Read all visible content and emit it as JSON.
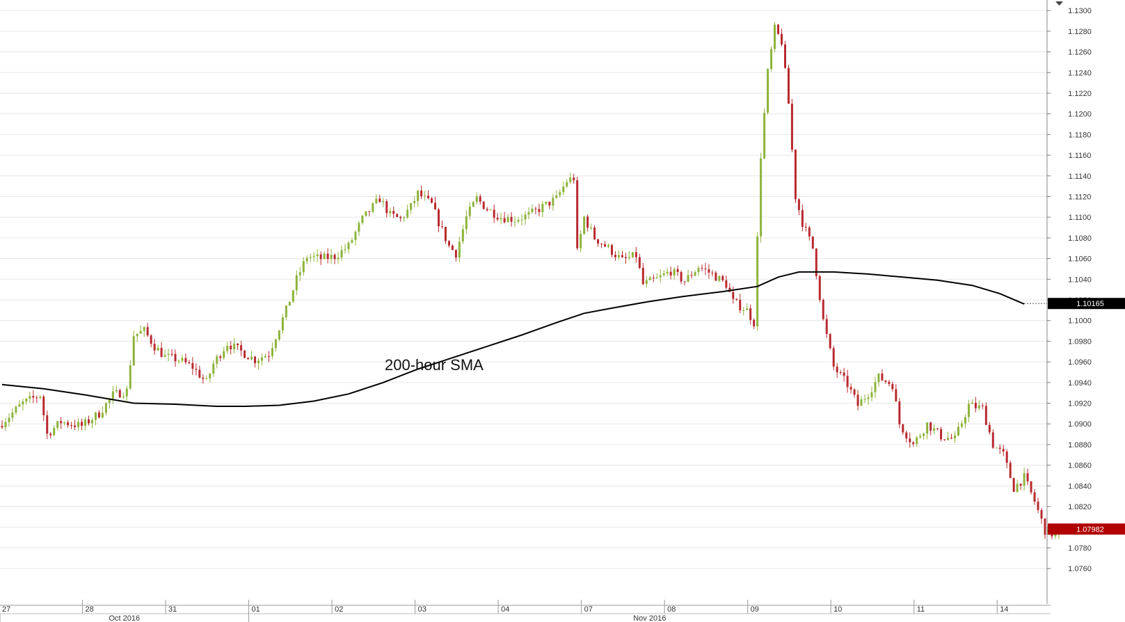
{
  "chart_data": {
    "type": "candlestick",
    "timeframe": "1-hour",
    "y_axis": {
      "position": "right",
      "ylim": [
        1.075,
        1.132
      ],
      "ticks": [
        "1.0760",
        "1.0780",
        "1.0800",
        "1.0820",
        "1.0840",
        "1.0860",
        "1.0880",
        "1.0900",
        "1.0920",
        "1.0940",
        "1.0960",
        "1.0980",
        "1.1000",
        "1.1020",
        "1.1040",
        "1.1060",
        "1.1080",
        "1.1100",
        "1.1120",
        "1.1140",
        "1.1160",
        "1.1180",
        "1.1200",
        "1.1220",
        "1.1240",
        "1.1260",
        "1.1280",
        "1.1300"
      ]
    },
    "x_axis": {
      "dates": [
        {
          "label": "27",
          "t": 0
        },
        {
          "label": "28",
          "t": 24
        },
        {
          "label": "31",
          "t": 48
        },
        {
          "label": "01",
          "t": 72
        },
        {
          "label": "02",
          "t": 96
        },
        {
          "label": "03",
          "t": 120
        },
        {
          "label": "04",
          "t": 144
        },
        {
          "label": "07",
          "t": 168
        },
        {
          "label": "08",
          "t": 192
        },
        {
          "label": "09",
          "t": 216
        },
        {
          "label": "10",
          "t": 240
        },
        {
          "label": "11",
          "t": 264
        },
        {
          "label": "14",
          "t": 288
        }
      ],
      "months": [
        {
          "label": "Oct 2016",
          "from": 0,
          "to": 72
        },
        {
          "label": "Nov 2016",
          "from": 72,
          "to": 314
        }
      ],
      "t_max": 314
    },
    "path": [
      [
        0,
        1.0898
      ],
      [
        7,
        1.092
      ],
      [
        12,
        1.0928
      ],
      [
        14,
        1.089
      ],
      [
        18,
        1.0902
      ],
      [
        24,
        1.0898
      ],
      [
        29,
        1.091
      ],
      [
        33,
        1.0928
      ],
      [
        37,
        1.0932
      ],
      [
        39,
        1.0986
      ],
      [
        42,
        1.099
      ],
      [
        45,
        1.0975
      ],
      [
        48,
        1.0965
      ],
      [
        52,
        1.0962
      ],
      [
        56,
        1.0955
      ],
      [
        60,
        1.094
      ],
      [
        62,
        1.0958
      ],
      [
        66,
        1.0978
      ],
      [
        70,
        1.097
      ],
      [
        74,
        1.0962
      ],
      [
        78,
        1.0968
      ],
      [
        80,
        1.0985
      ],
      [
        83,
        1.101
      ],
      [
        86,
        1.104
      ],
      [
        89,
        1.1062
      ],
      [
        93,
        1.106
      ],
      [
        97,
        1.1062
      ],
      [
        101,
        1.1072
      ],
      [
        105,
        1.1098
      ],
      [
        110,
        1.1118
      ],
      [
        113,
        1.1102
      ],
      [
        116,
        1.1098
      ],
      [
        119,
        1.111
      ],
      [
        121,
        1.1123
      ],
      [
        125,
        1.1112
      ],
      [
        127,
        1.1095
      ],
      [
        130,
        1.1072
      ],
      [
        132,
        1.1065
      ],
      [
        135,
        1.11
      ],
      [
        138,
        1.1118
      ],
      [
        141,
        1.1108
      ],
      [
        145,
        1.11
      ],
      [
        149,
        1.1098
      ],
      [
        153,
        1.1102
      ],
      [
        157,
        1.111
      ],
      [
        161,
        1.1118
      ],
      [
        164,
        1.1135
      ],
      [
        166,
        1.1138
      ],
      [
        167,
        1.1066
      ],
      [
        169,
        1.11
      ],
      [
        172,
        1.108
      ],
      [
        176,
        1.107
      ],
      [
        180,
        1.1058
      ],
      [
        184,
        1.1063
      ],
      [
        186,
        1.1035
      ],
      [
        190,
        1.104
      ],
      [
        194,
        1.1048
      ],
      [
        198,
        1.1038
      ],
      [
        202,
        1.1052
      ],
      [
        206,
        1.1045
      ],
      [
        210,
        1.1035
      ],
      [
        212,
        1.1018
      ],
      [
        216,
        1.101
      ],
      [
        218,
        1.0998
      ],
      [
        220,
        1.116
      ],
      [
        222,
        1.124
      ],
      [
        224,
        1.1282
      ],
      [
        226,
        1.127
      ],
      [
        228,
        1.121
      ],
      [
        230,
        1.112
      ],
      [
        232,
        1.1095
      ],
      [
        235,
        1.107
      ],
      [
        238,
        1.1
      ],
      [
        241,
        1.0955
      ],
      [
        245,
        1.0938
      ],
      [
        248,
        1.0918
      ],
      [
        251,
        1.093
      ],
      [
        254,
        1.0945
      ],
      [
        258,
        1.0938
      ],
      [
        260,
        1.09
      ],
      [
        264,
        1.088
      ],
      [
        268,
        1.09
      ],
      [
        272,
        1.0888
      ],
      [
        276,
        1.0885
      ],
      [
        280,
        1.0918
      ],
      [
        284,
        1.0915
      ],
      [
        287,
        1.088
      ],
      [
        290,
        1.087
      ],
      [
        293,
        1.0838
      ],
      [
        296,
        1.0848
      ],
      [
        299,
        1.0825
      ],
      [
        302,
        1.0797
      ],
      [
        305,
        1.0792
      ],
      [
        308,
        1.0798
      ]
    ],
    "sma": {
      "label": "200-hour SMA",
      "points": [
        [
          0,
          1.0938
        ],
        [
          12,
          1.0934
        ],
        [
          24,
          1.0928
        ],
        [
          38,
          1.092
        ],
        [
          50,
          1.0919
        ],
        [
          62,
          1.0917
        ],
        [
          70,
          1.0917
        ],
        [
          80,
          1.0918
        ],
        [
          90,
          1.0922
        ],
        [
          100,
          1.0929
        ],
        [
          110,
          1.094
        ],
        [
          120,
          1.0953
        ],
        [
          130,
          1.0964
        ],
        [
          140,
          1.0975
        ],
        [
          150,
          1.0986
        ],
        [
          160,
          1.0998
        ],
        [
          168,
          1.1007
        ],
        [
          176,
          1.1012
        ],
        [
          186,
          1.1018
        ],
        [
          196,
          1.1023
        ],
        [
          208,
          1.1028
        ],
        [
          218,
          1.1033
        ],
        [
          224,
          1.1042
        ],
        [
          230,
          1.1047
        ],
        [
          240,
          1.1047
        ],
        [
          250,
          1.1045
        ],
        [
          260,
          1.1042
        ],
        [
          270,
          1.1039
        ],
        [
          280,
          1.1034
        ],
        [
          288,
          1.1026
        ],
        [
          295,
          1.1016
        ]
      ]
    },
    "markers": [
      {
        "value": 1.10165,
        "label": "1.10165",
        "color": "#000000"
      },
      {
        "value": 1.07982,
        "label": "1.07982",
        "color": "#b00000"
      }
    ],
    "colors": {
      "up": "#8db33a",
      "down": "#b8292f",
      "sma": "#000000",
      "grid": "#e6e6e6"
    },
    "grid": true
  }
}
